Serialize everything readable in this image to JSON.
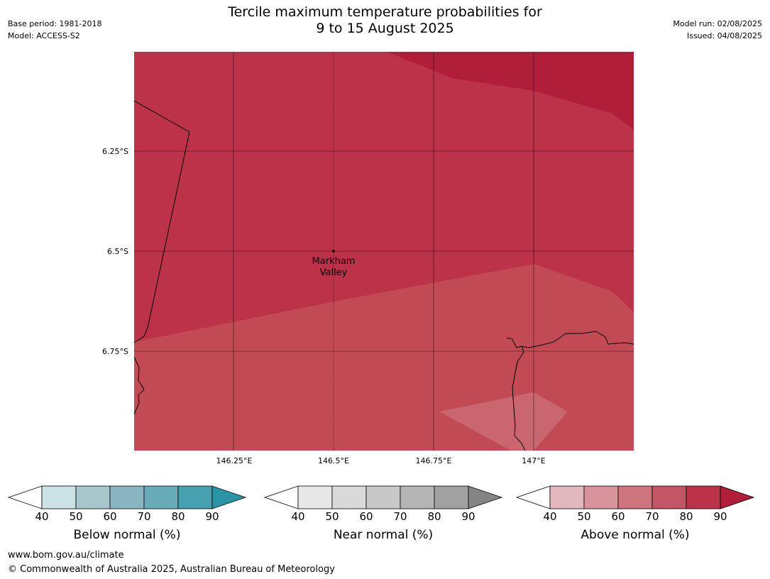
{
  "header": {
    "base_period": "Base period: 1981-2018",
    "model": "Model: ACCESS-S2",
    "title_line1": "Tercile maximum temperature probabilities for",
    "title_line2": "9 to 15 August 2025",
    "model_run": "Model run: 02/08/2025",
    "issued": "Issued: 04/08/2025"
  },
  "map": {
    "lat_labels": [
      "6.25°S",
      "6.5°S",
      "6.75°S"
    ],
    "lon_labels": [
      "146.25°E",
      "146.5°E",
      "146.75°E",
      "147°E"
    ],
    "place_label_line1": "Markham",
    "place_label_line2": "Valley",
    "zones": [
      {
        "category": "Above normal",
        "range": "80-90",
        "color": "#b01e3a"
      },
      {
        "category": "Above normal",
        "range": "70-80",
        "color": "#bc3249"
      },
      {
        "category": "Above normal",
        "range": "60-70",
        "color": "#c14a54"
      },
      {
        "category": "Above normal",
        "range": "50-60",
        "color": "#c96670"
      }
    ]
  },
  "legends": [
    {
      "label": "Below normal (%)",
      "ticks": [
        "40",
        "50",
        "60",
        "70",
        "80",
        "90"
      ],
      "colors": [
        "#ffffff",
        "#cbe2e7",
        "#a8c7cd",
        "#89b6c2",
        "#6aabb9",
        "#48a1b1",
        "#2b93a6"
      ]
    },
    {
      "label": "Near normal (%)",
      "ticks": [
        "40",
        "50",
        "60",
        "70",
        "80",
        "90"
      ],
      "colors": [
        "#ffffff",
        "#e7e7e7",
        "#d9d9d9",
        "#c8c8c8",
        "#b5b5b5",
        "#a1a1a1",
        "#848484"
      ]
    },
    {
      "label": "Above normal (%)",
      "ticks": [
        "40",
        "50",
        "60",
        "70",
        "80",
        "90"
      ],
      "colors": [
        "#ffffff",
        "#e2b8bd",
        "#d8949c",
        "#cd747c",
        "#c45566",
        "#bc3249",
        "#b01e3a"
      ]
    }
  ],
  "footer": {
    "url": "www.bom.gov.au/climate",
    "copyright": "© Commonwealth of Australia 2025, Australian Bureau of Meteorology"
  }
}
